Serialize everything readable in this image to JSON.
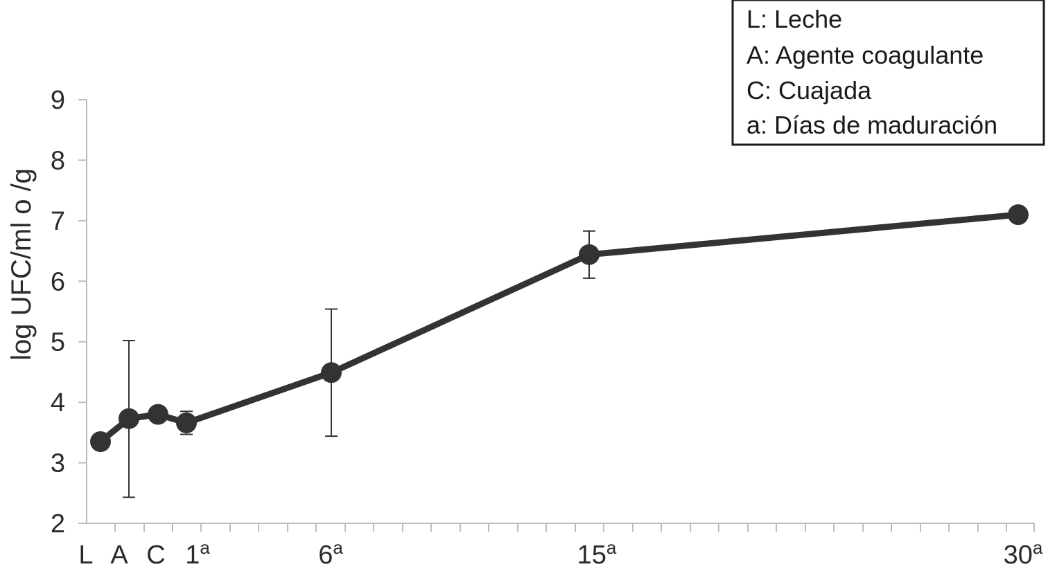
{
  "chart_data": {
    "type": "line",
    "ylabel": "log UFC/ml o /g",
    "ylim": [
      2,
      9
    ],
    "yticks": [
      2,
      3,
      4,
      5,
      6,
      7,
      8,
      9
    ],
    "grid": false,
    "legend_position": "top-right",
    "legend": [
      "L: Leche",
      "A: Agente coagulante",
      "C: Cuajada",
      "a: Días de maduración"
    ],
    "x_tick_labels": [
      {
        "base": "L",
        "sup": ""
      },
      {
        "base": "A",
        "sup": ""
      },
      {
        "base": "C",
        "sup": ""
      },
      {
        "base": "1",
        "sup": "a"
      },
      {
        "base": "6",
        "sup": "a"
      },
      {
        "base": "15",
        "sup": "a"
      },
      {
        "base": "30",
        "sup": "a"
      }
    ],
    "series": [
      {
        "color": "#333333",
        "points": [
          {
            "label": "L",
            "y": 3.35,
            "err_low": 3.22,
            "err_high": 3.42
          },
          {
            "label": "A",
            "y": 3.73,
            "err_low": 2.43,
            "err_high": 5.02
          },
          {
            "label": "C",
            "y": 3.8,
            "err_low": 3.72,
            "err_high": 3.88
          },
          {
            "label": "1a",
            "y": 3.66,
            "err_low": 3.47,
            "err_high": 3.85
          },
          {
            "label": "6a",
            "y": 4.49,
            "err_low": 3.44,
            "err_high": 5.54
          },
          {
            "label": "15a",
            "y": 6.44,
            "err_low": 6.05,
            "err_high": 6.83
          },
          {
            "label": "30a",
            "y": 7.1,
            "err_low": 7.1,
            "err_high": 7.1
          }
        ]
      }
    ]
  }
}
